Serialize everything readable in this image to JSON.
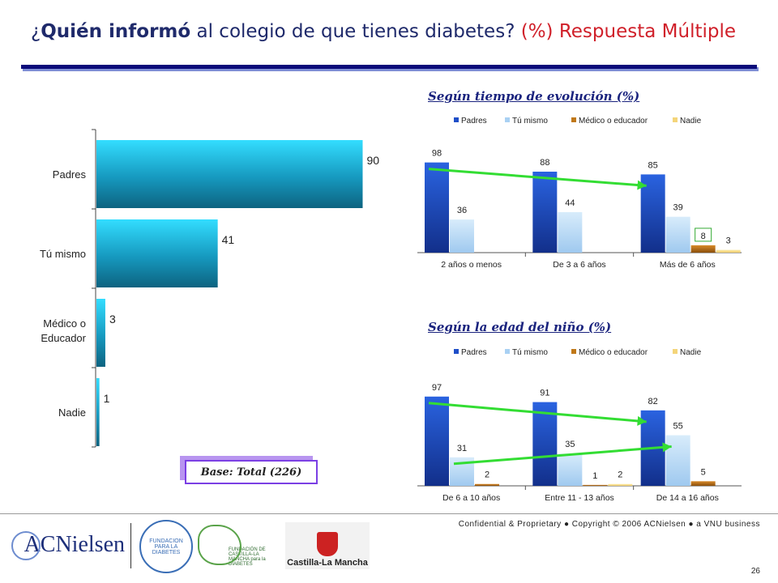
{
  "title": {
    "part_open": "¿",
    "part_bold": "Quién informó",
    "part_rest": " al colegio de que tienes diabetes?",
    "part_red": " (%) Respuesta Múltiple"
  },
  "colors": {
    "title_bar": "#0b0b7a",
    "left_bar": "#1ab3d9",
    "padres": "#1f4fc8",
    "tu_mismo": "#a9d1f3",
    "medico": "#c07818",
    "nadie": "#f4d57a",
    "arrow": "#33dd33",
    "highlight_box": "#33aa33"
  },
  "base_label": "Base: Total (226)",
  "footer": {
    "confidential": "Confidential & Proprietary ● Copyright © 2006 ACNielsen ● a VNU business",
    "page_number": "26",
    "logos": {
      "acnielsen": "ACNielsen",
      "fundacion_diabetes": "FUNDACION PARA LA DIABETES",
      "fundacion_clm": "FUNDACIÓN DE CASTILLA-LA MANCHA para la DIABETES",
      "castilla": "Castilla-La Mancha"
    }
  },
  "charts_text": {
    "tiempo_title": "Según tiempo de evolución (%)",
    "edad_title": "Según la edad del niño (%)"
  },
  "chart_data": [
    {
      "type": "bar",
      "orientation": "horizontal",
      "categories": [
        "Padres",
        "Tú mismo",
        "Médico o Educador",
        "Nadie"
      ],
      "values": [
        90,
        41,
        3,
        1
      ],
      "xlim": [
        0,
        100
      ]
    },
    {
      "type": "bar",
      "title": "Según tiempo de evolución (%)",
      "categories": [
        "2 años o menos",
        "De 3 a 6 años",
        "Más de 6 años"
      ],
      "series": [
        {
          "name": "Padres",
          "values": [
            98,
            88,
            85
          ]
        },
        {
          "name": "Tú mismo",
          "values": [
            36,
            44,
            39
          ]
        },
        {
          "name": "Médico o educador",
          "values": [
            null,
            null,
            8
          ]
        },
        {
          "name": "Nadie",
          "values": [
            null,
            null,
            3
          ]
        }
      ],
      "ylim": [
        0,
        110
      ],
      "legend": "top",
      "annotations": [
        "arrow: Padres 98 → 85"
      ]
    },
    {
      "type": "bar",
      "title": "Según la edad del niño (%)",
      "categories": [
        "De 6 a 10 años",
        "Entre 11 - 13 años",
        "De 14 a 16 años"
      ],
      "series": [
        {
          "name": "Padres",
          "values": [
            97,
            91,
            82
          ]
        },
        {
          "name": "Tú mismo",
          "values": [
            31,
            35,
            55
          ]
        },
        {
          "name": "Médico o educador",
          "values": [
            2,
            1,
            5
          ]
        },
        {
          "name": "Nadie",
          "values": [
            null,
            2,
            null
          ]
        }
      ],
      "ylim": [
        0,
        110
      ],
      "legend": "top",
      "annotations": [
        "arrow: Padres 97 → 82",
        "arrow: Tú mismo 31 → 55"
      ]
    }
  ]
}
